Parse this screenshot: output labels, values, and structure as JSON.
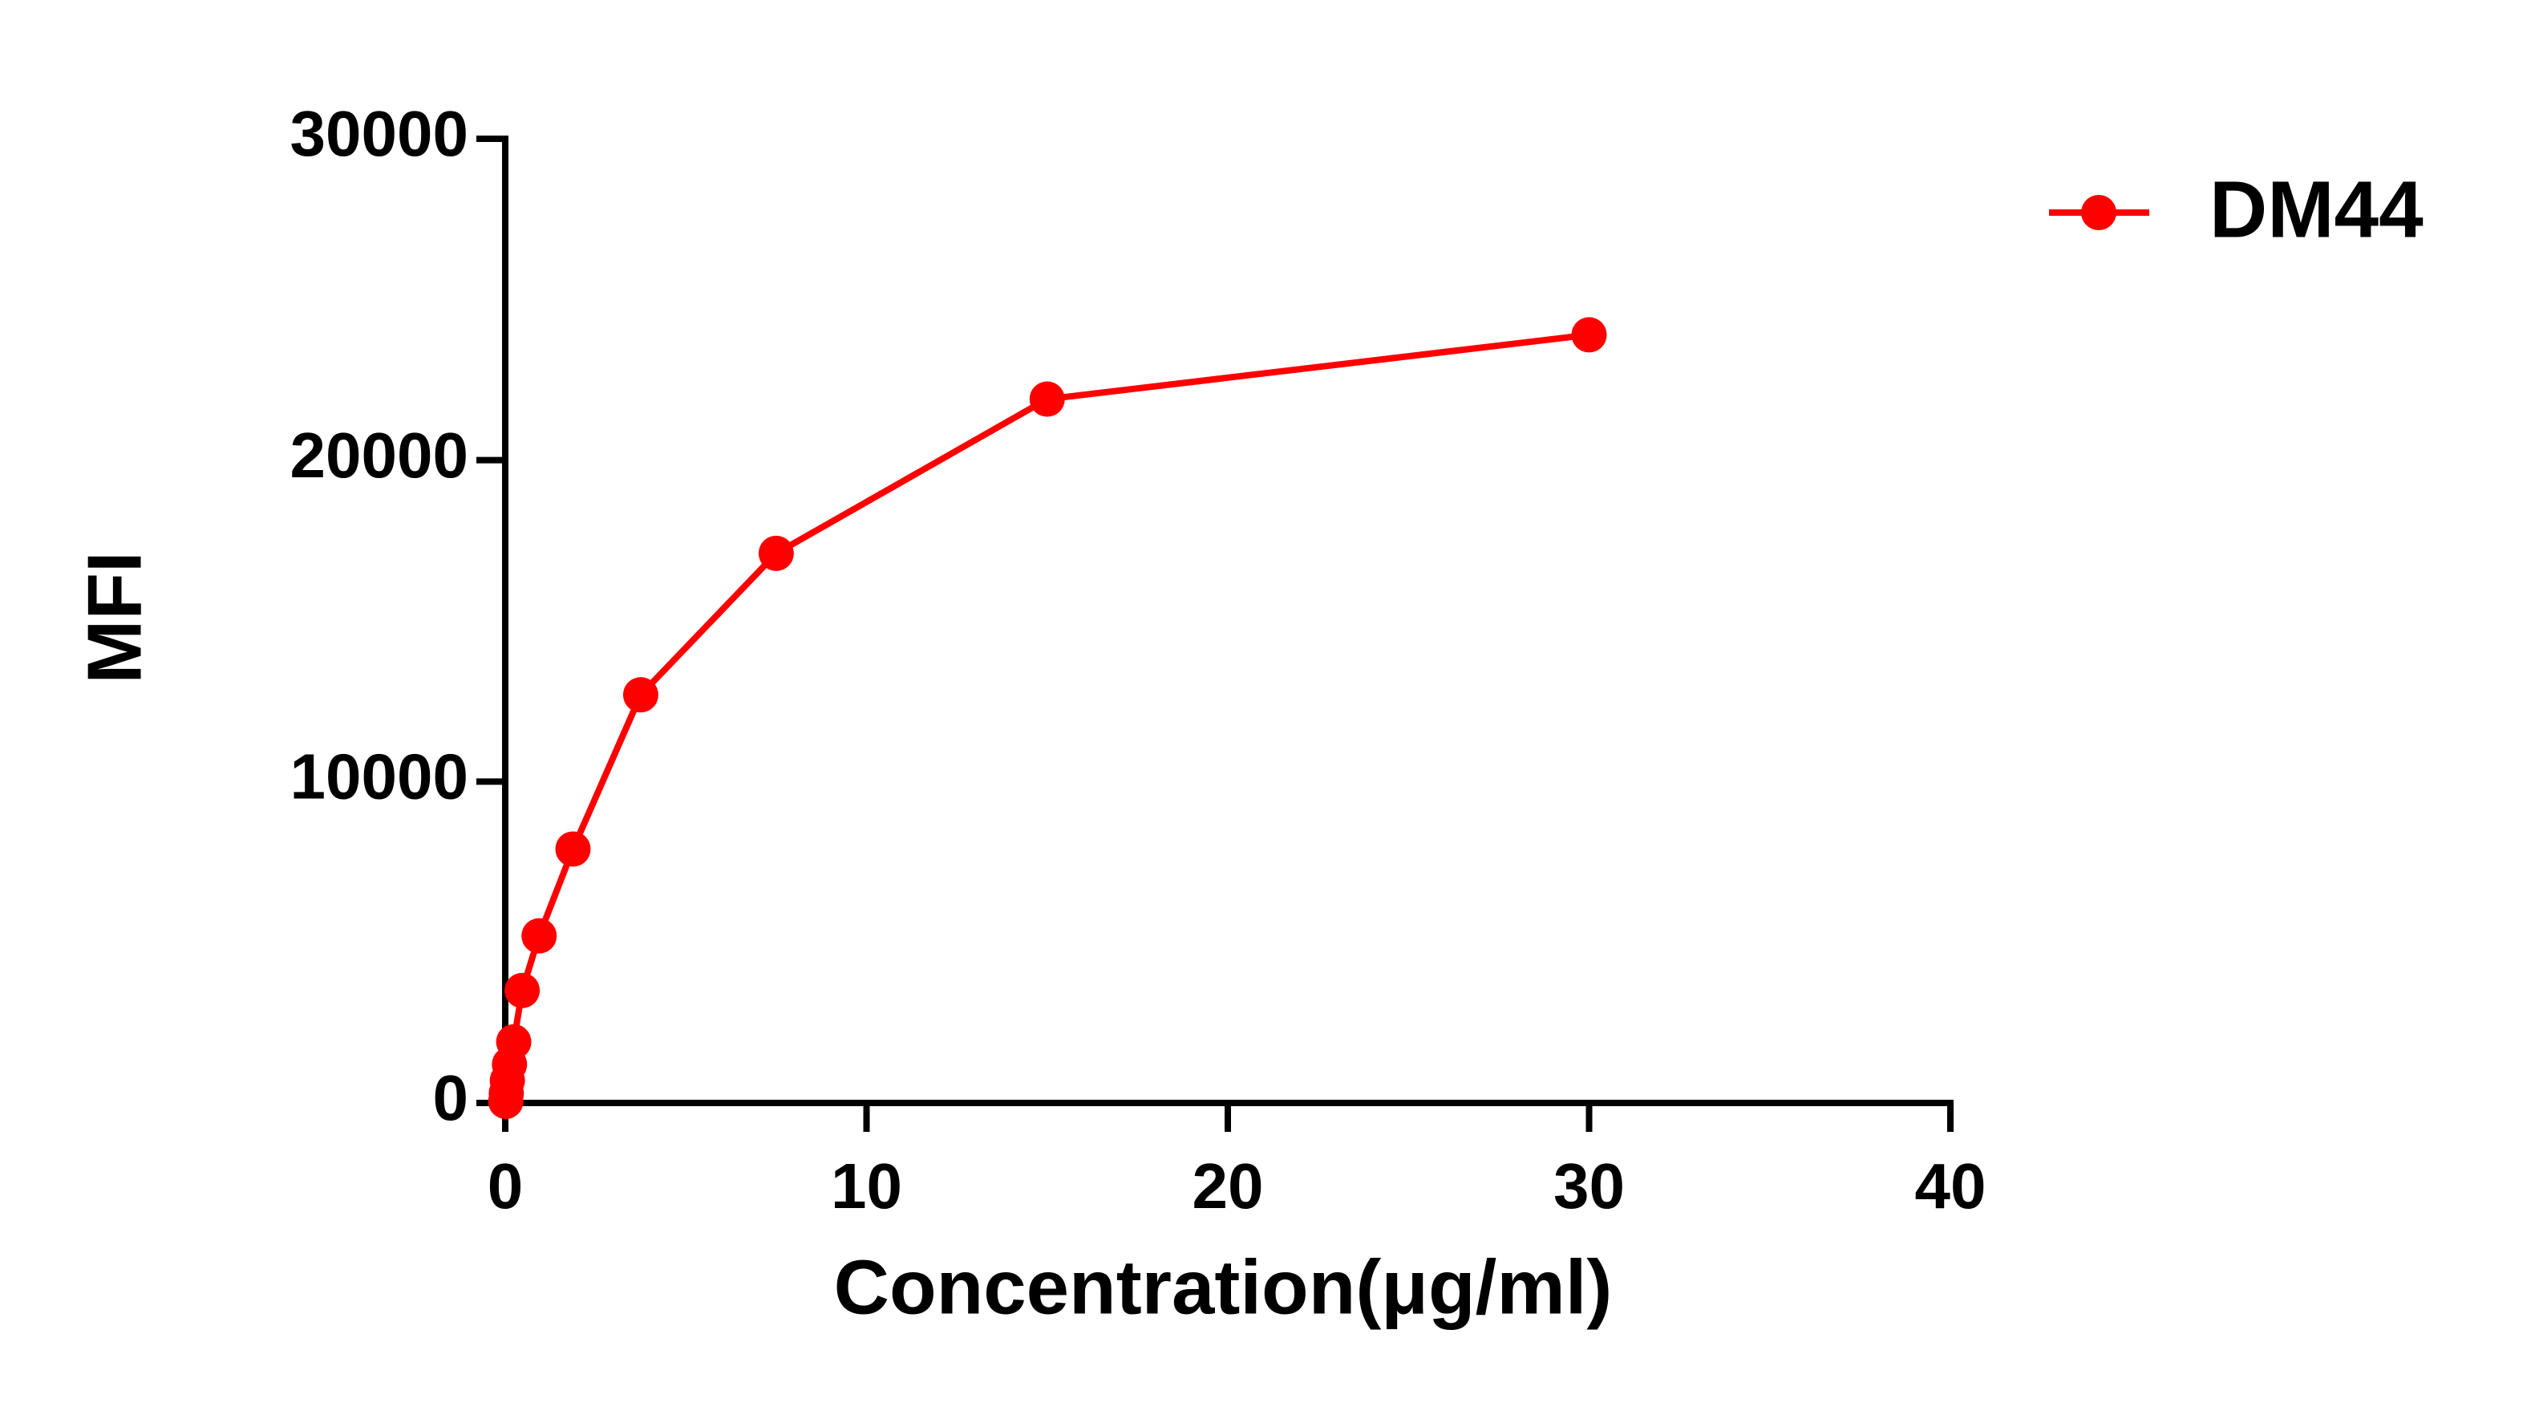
{
  "chart_data": {
    "type": "line",
    "x_label": "Concentration(μg/ml)",
    "y_label": "MFI",
    "x": [
      30,
      15,
      7.5,
      3.75,
      1.875,
      0.9375,
      0.46875,
      0.234375,
      0.1171875,
      0.05859375,
      0.029296875,
      0.0146484375
    ],
    "series": [
      {
        "name": "DM44",
        "color": "#ff0000",
        "values": [
          23900,
          21900,
          17100,
          12700,
          7900,
          5200,
          3500,
          1900,
          1200,
          700,
          300,
          50
        ]
      }
    ],
    "xlim": [
      0,
      40
    ],
    "xticks": [
      0,
      10,
      20,
      30,
      40
    ],
    "ylim": [
      0,
      30000
    ],
    "yticks": [
      0,
      10000,
      20000,
      30000
    ],
    "legend": "upper right"
  }
}
